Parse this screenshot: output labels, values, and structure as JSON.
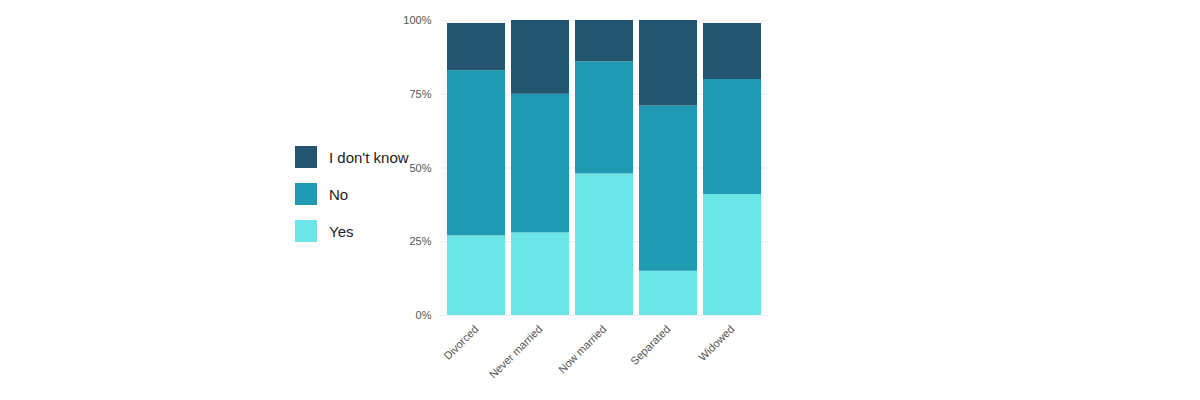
{
  "chart_data": {
    "type": "bar",
    "stacked": true,
    "categories": [
      "Divorced",
      "Never married",
      "Now married",
      "Separated",
      "Widowed"
    ],
    "series": [
      {
        "name": "Yes",
        "color": "#6ce5e8",
        "values": [
          27,
          28,
          48,
          15,
          41
        ]
      },
      {
        "name": "No",
        "color": "#1f9ab2",
        "values": [
          56,
          47,
          38,
          56,
          39
        ]
      },
      {
        "name": "I don't know",
        "color": "#235470",
        "values": [
          16,
          25,
          14,
          29,
          19
        ]
      }
    ],
    "ylim": [
      0,
      100
    ],
    "yticks": [
      {
        "value": 0,
        "label": "0%"
      },
      {
        "value": 25,
        "label": "25%"
      },
      {
        "value": 50,
        "label": "50%"
      },
      {
        "value": 75,
        "label": "75%"
      },
      {
        "value": 100,
        "label": "100%"
      }
    ],
    "grid": true,
    "legend": "left"
  }
}
